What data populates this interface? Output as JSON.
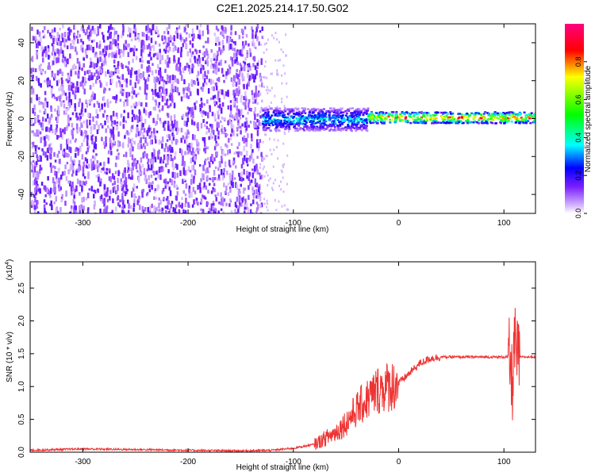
{
  "title": "C2E1.2025.214.17.50.G02",
  "chart_data": [
    {
      "type": "heatmap",
      "title": "C2E1.2025.214.17.50.G02",
      "xlabel": "Height of straight line (km)",
      "ylabel": "Frequency (Hz)",
      "xlim": [
        -350,
        130
      ],
      "ylim": [
        -50,
        50
      ],
      "x_ticks": [
        -300,
        -200,
        -100,
        0,
        100
      ],
      "y_ticks": [
        -40,
        -20,
        0,
        20,
        40
      ],
      "colorbar": {
        "label": "Normalized spectral amplitude",
        "range": [
          0.0,
          1.0
        ],
        "ticks": [
          0.0,
          0.2,
          0.4,
          0.6,
          0.8
        ],
        "colormap": [
          "#ffffff",
          "#d7b8ff",
          "#7a1fff",
          "#0000ff",
          "#00ffff",
          "#00ff00",
          "#ffff00",
          "#ff0000",
          "#ff0080"
        ]
      },
      "regions": [
        {
          "x_range": [
            -350,
            -130
          ],
          "freq_range": [
            -50,
            50
          ],
          "amplitude": 0.15,
          "description_level": "noise"
        },
        {
          "x_range": [
            -130,
            -30
          ],
          "freq_center": 0,
          "freq_halfwidth": 6,
          "amplitude": 0.4
        },
        {
          "x_range": [
            -30,
            130
          ],
          "freq_center": 1,
          "freq_halfwidth": 3,
          "amplitude": 0.9
        }
      ]
    },
    {
      "type": "line",
      "xlabel": "Height of straight line (km)",
      "ylabel": "SNR (10 * v/v)",
      "ylabel_multiplier": "(x10",
      "ylabel_multiplier_exp": "4",
      "ylabel_multiplier_close": ")",
      "xlim": [
        -350,
        130
      ],
      "ylim": [
        0,
        2.9
      ],
      "x_ticks": [
        -300,
        -200,
        -100,
        0,
        100
      ],
      "y_ticks": [
        "0.0",
        "0.5",
        "1.0",
        "1.5",
        "2.0",
        "2.5"
      ],
      "series": [
        {
          "color": "#ee3333",
          "x": [
            -350,
            -300,
            -250,
            -200,
            -150,
            -120,
            -100,
            -80,
            -60,
            -50,
            -40,
            -30,
            -20,
            -10,
            0,
            10,
            20,
            30,
            40,
            60,
            80,
            100,
            105,
            108,
            110,
            112,
            115,
            120,
            130
          ],
          "y": [
            0.03,
            0.05,
            0.04,
            0.03,
            0.02,
            0.03,
            0.06,
            0.12,
            0.3,
            0.45,
            0.65,
            0.8,
            0.95,
            1.0,
            1.05,
            1.2,
            1.35,
            1.43,
            1.45,
            1.45,
            1.45,
            1.45,
            1.45,
            1.0,
            1.7,
            1.45,
            1.45,
            1.45,
            1.45
          ]
        }
      ]
    }
  ]
}
